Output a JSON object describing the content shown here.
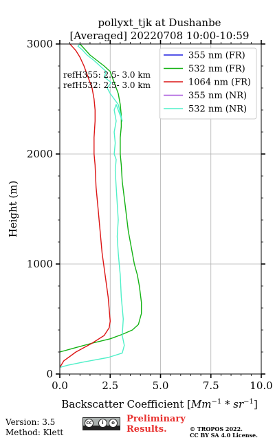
{
  "chart_data": {
    "type": "line",
    "title_line1": "pollyxt_tjk at Dushanbe",
    "title_line2": "[Averaged] 20220708 10:00-10:59",
    "xlabel_text": "Backscatter Coefficient [",
    "xlabel_math": "Mm",
    "xlabel_sup1": "−1",
    "xlabel_mid": " * ",
    "xlabel_math2": "sr",
    "xlabel_sup2": "−1",
    "xlabel_end": "]",
    "ylabel": "Height (m)",
    "xlim": [
      0,
      10
    ],
    "ylim": [
      0,
      3000
    ],
    "xticks": [
      0,
      2.5,
      5,
      7.5,
      10
    ],
    "xtick_labels": [
      "0.0",
      "2.5",
      "5.0",
      "7.5",
      "10.0"
    ],
    "yticks": [
      0,
      1000,
      2000,
      3000
    ],
    "ytick_labels": [
      "0",
      "1000",
      "2000",
      "3000"
    ],
    "grid": true,
    "legend_position": "top-right",
    "annotations": [
      "refH355:  2.5- 3.0 km",
      "refH532:  2.5- 3.0 km"
    ],
    "series": [
      {
        "name": "355 nm (FR)",
        "color": "#1f1fe0",
        "x": [],
        "y": []
      },
      {
        "name": "532 nm (FR)",
        "color": "#13b213",
        "x": [
          0.0,
          0.8,
          1.6,
          2.5,
          3.1,
          3.6,
          3.9,
          4.05,
          4.05,
          3.95,
          3.85,
          3.7,
          3.55,
          3.4,
          3.3,
          3.2,
          3.1,
          3.05,
          3.0,
          3.0,
          3.05,
          3.05,
          3.0,
          2.9,
          2.7,
          2.5,
          2.2,
          1.85,
          1.5,
          1.2,
          1.0
        ],
        "y": [
          200,
          240,
          280,
          320,
          360,
          400,
          450,
          550,
          650,
          800,
          900,
          1000,
          1150,
          1300,
          1450,
          1600,
          1750,
          1900,
          2000,
          2150,
          2250,
          2350,
          2450,
          2550,
          2650,
          2750,
          2800,
          2850,
          2900,
          2960,
          3000
        ]
      },
      {
        "name": "1064 nm (FR)",
        "color": "#dc1515",
        "x": [
          0.0,
          0.2,
          0.8,
          1.6,
          2.2,
          2.45,
          2.5,
          2.4,
          2.25,
          2.1,
          2.0,
          1.9,
          1.8,
          1.75,
          1.7,
          1.7,
          1.75,
          1.75,
          1.7,
          1.6,
          1.4,
          1.2,
          1.0,
          0.8,
          0.6,
          0.5
        ],
        "y": [
          60,
          120,
          200,
          280,
          350,
          420,
          480,
          700,
          900,
          1100,
          1300,
          1500,
          1700,
          1900,
          2000,
          2150,
          2300,
          2400,
          2500,
          2600,
          2700,
          2800,
          2880,
          2940,
          2980,
          3000
        ]
      },
      {
        "name": "355 nm (NR)",
        "color": "#a855dd",
        "x": [],
        "y": []
      },
      {
        "name": "532 nm (NR)",
        "color": "#4ff0c8",
        "x": [
          0.0,
          0.4,
          1.2,
          2.4,
          3.1,
          3.2,
          3.1,
          3.15,
          3.05,
          3.0,
          2.95,
          2.9,
          2.85,
          2.9,
          2.85,
          2.8,
          2.75,
          2.8,
          2.7,
          2.75,
          2.7,
          2.8,
          2.7,
          2.8,
          3.0,
          3.1,
          2.9,
          2.7,
          2.5,
          2.35,
          2.55,
          2.2,
          2.3,
          2.0,
          1.7,
          1.35,
          1.1,
          0.9,
          1.0
        ],
        "y": [
          60,
          80,
          110,
          150,
          190,
          260,
          350,
          500,
          700,
          900,
          1000,
          1100,
          1250,
          1400,
          1550,
          1700,
          1850,
          1950,
          2000,
          2100,
          2200,
          2300,
          2400,
          2450,
          2350,
          2300,
          2450,
          2500,
          2550,
          2600,
          2650,
          2700,
          2750,
          2800,
          2850,
          2900,
          2950,
          2980,
          3000
        ]
      }
    ]
  },
  "footer": {
    "version": "Version: 3.5",
    "method": "Method: Klett",
    "prelim_line1": "Preliminary",
    "prelim_line2": "Results.",
    "copyright_line1": "© TROPOS 2022.",
    "copyright_line2": "CC BY SA 4.0 License.",
    "cc_label": "BY SA"
  }
}
